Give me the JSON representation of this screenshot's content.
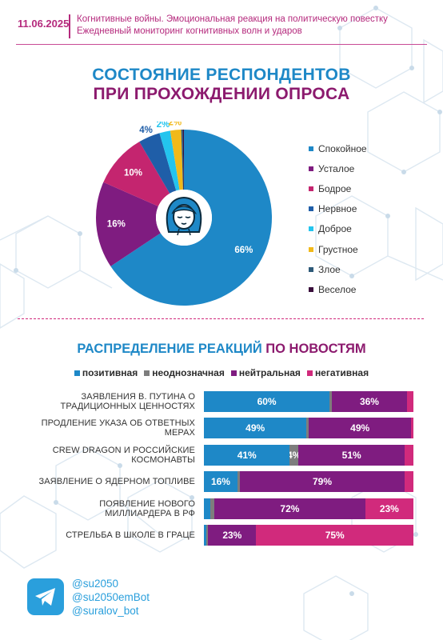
{
  "header": {
    "date": "11.06.2025",
    "line1": "Когнитивные войны. Эмоциональная реакция на политическую повестку",
    "line2": "Ежедневный мониторинг когнитивных волн и ударов"
  },
  "section1": {
    "title_line1": "СОСТОЯНИЕ РЕСПОНДЕНТОВ",
    "title_line2": "ПРИ ПРОХОЖДЕНИИ ОПРОСА",
    "center_icon": "woman-face-icon"
  },
  "section2": {
    "title_part1": "РАСПРЕДЕЛЕНИЕ РЕАКЦИЙ ",
    "title_part2": "ПО НОВОСТЯМ"
  },
  "footer": {
    "icon": "telegram-icon",
    "handles": [
      "@su2050",
      "@su2050emBot",
      "@suralov_bot"
    ]
  },
  "colors": {
    "blue": "#1e88c7",
    "purple": "#7f1c80",
    "pink": "#d12a7c",
    "gray": "#7d7d7d"
  },
  "chart_data": [
    {
      "type": "pie",
      "title": "СОСТОЯНИЕ РЕСПОНДЕНТОВ ПРИ ПРОХОЖДЕНИИ ОПРОСА",
      "categories": [
        "Спокойное",
        "Усталое",
        "Бодрое",
        "Нервное",
        "Доброе",
        "Грустное",
        "Злое",
        "Веселое"
      ],
      "values": [
        66,
        16,
        10,
        4,
        2,
        2,
        0.3,
        0.2
      ],
      "labels": [
        "66%",
        "16%",
        "10%",
        "4%",
        "2%",
        "2%",
        "",
        ""
      ],
      "colors": [
        "#1e88c7",
        "#7f1c80",
        "#c4256f",
        "#1f5ea8",
        "#23c4ee",
        "#f1b91a",
        "#2e5a78",
        "#3a0f3c"
      ],
      "legend_position": "right"
    },
    {
      "type": "bar",
      "orientation": "horizontal",
      "stacked": true,
      "title": "РАСПРЕДЕЛЕНИЕ РЕАКЦИЙ ПО НОВОСТЯМ",
      "categories": [
        "Заявления В. Путина о традиционных ценностях",
        "Продление указа об ответных мерах",
        "Crew Dragon и российские космонавты",
        "Заявление о ядерном топливе",
        "Появление нового миллиардера в РФ",
        "Стрельба в школе в Граце"
      ],
      "series": [
        {
          "name": "позитивная",
          "color": "#1e88c7",
          "values": [
            60,
            49,
            41,
            16,
            3,
            1
          ],
          "labels": [
            "60%",
            "49%",
            "41%",
            "16%",
            "",
            ""
          ]
        },
        {
          "name": "неоднозначная",
          "color": "#7d7d7d",
          "values": [
            1,
            1,
            4,
            1,
            2,
            1
          ],
          "labels": [
            "",
            "",
            "4%",
            "",
            "",
            ""
          ]
        },
        {
          "name": "нейтральная",
          "color": "#7f1c80",
          "values": [
            36,
            49,
            51,
            79,
            72,
            23
          ],
          "labels": [
            "36%",
            "49%",
            "51%",
            "79%",
            "72%",
            "23%"
          ]
        },
        {
          "name": "негативная",
          "color": "#d12a7c",
          "values": [
            3,
            1,
            4,
            4,
            23,
            75
          ],
          "labels": [
            "",
            "",
            "",
            "",
            "23%",
            "75%"
          ]
        }
      ],
      "xlim": [
        0,
        100
      ],
      "legend_position": "top"
    }
  ]
}
